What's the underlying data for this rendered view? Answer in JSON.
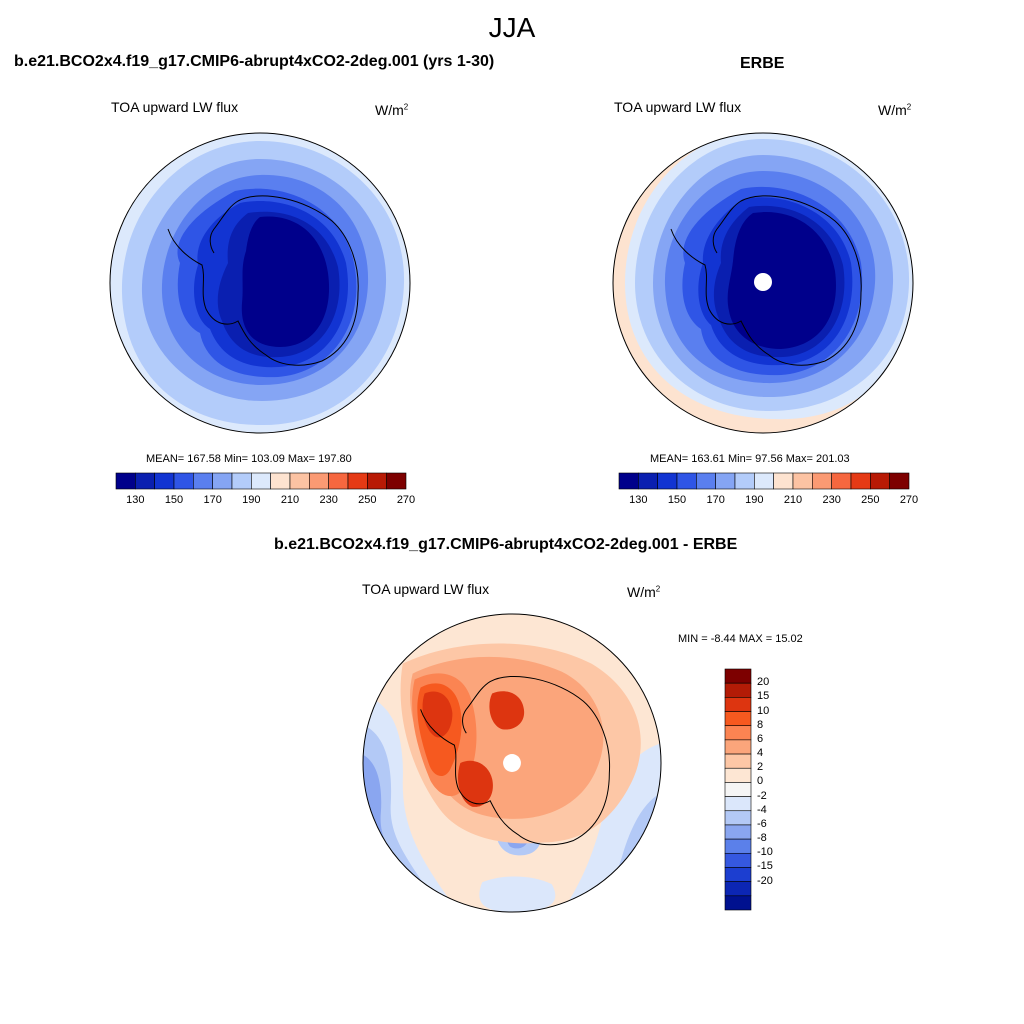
{
  "title": "JJA",
  "panels": {
    "model": {
      "heading": "b.e21.BCO2x4.f19_g17.CMIP6-abrupt4xCO2-2deg.001 (yrs 1-30)",
      "variable": "TOA upward LW flux",
      "units_base": "W/m",
      "units_exp": "2",
      "stats": "MEAN= 167.58  Min= 103.09  Max= 197.80"
    },
    "obs": {
      "heading": "ERBE",
      "variable": "TOA upward LW flux",
      "units_base": "W/m",
      "units_exp": "2",
      "stats": "MEAN= 163.61  Min=  97.56  Max= 201.03"
    },
    "diff": {
      "heading": "b.e21.BCO2x4.f19_g17.CMIP6-abrupt4xCO2-2deg.001 - ERBE",
      "variable": "TOA upward LW flux",
      "units_base": "W/m",
      "units_exp": "2",
      "stats": "MIN =  -8.44 MAX =  15.02"
    }
  },
  "colorbar_abs": {
    "colors": [
      "#00008b",
      "#0a1fb0",
      "#1234d2",
      "#2f55e6",
      "#5a7fef",
      "#85a5f4",
      "#b3ccfa",
      "#dce9fc",
      "#fde3d0",
      "#fcc3a3",
      "#fb9a73",
      "#f6673f",
      "#e53a15",
      "#b81a05",
      "#7d0000"
    ],
    "ticks": [
      "130",
      "150",
      "170",
      "190",
      "210",
      "230",
      "250",
      "270"
    ]
  },
  "colorbar_diff": {
    "colors": [
      "#7d0000",
      "#b31b06",
      "#dd3510",
      "#f6591f",
      "#fb8452",
      "#fba57b",
      "#fdc7a6",
      "#fde6d3",
      "#f5f5f5",
      "#dbe7fb",
      "#b3c9f6",
      "#8aa6f0",
      "#5b80ea",
      "#3558e0",
      "#1c3ed0",
      "#0c26b4",
      "#00118f"
    ],
    "ticks": [
      "20",
      "15",
      "10",
      "8",
      "6",
      "4",
      "2",
      "0",
      "-2",
      "-4",
      "-6",
      "-8",
      "-10",
      "-15",
      "-20"
    ]
  }
}
